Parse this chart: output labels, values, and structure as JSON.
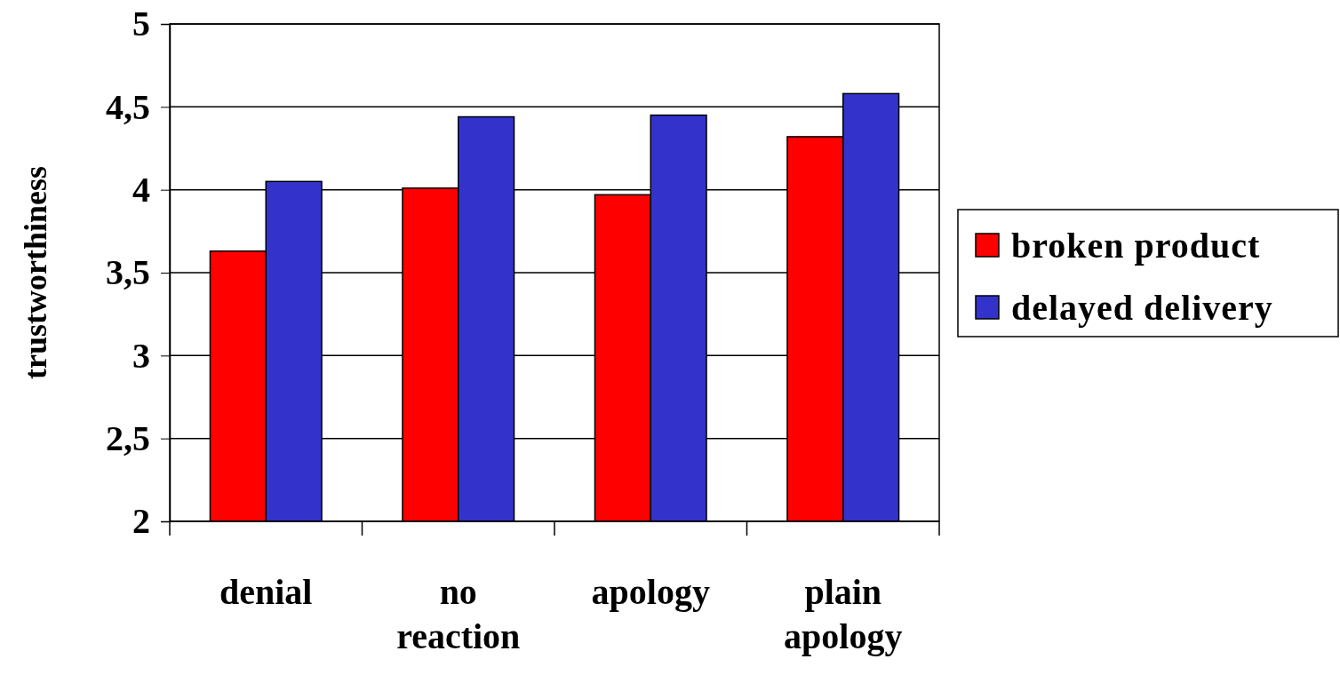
{
  "chart_data": {
    "type": "bar",
    "ylabel": "trustworthiness",
    "categories": [
      "denial",
      "no reaction",
      "apology",
      "plain apology"
    ],
    "series": [
      {
        "name": "broken product",
        "color": "#ff0000",
        "values": [
          3.63,
          4.01,
          3.97,
          4.32
        ]
      },
      {
        "name": "delayed delivery",
        "color": "#3333cc",
        "values": [
          4.05,
          4.44,
          4.45,
          4.58
        ]
      }
    ],
    "ylim": [
      2,
      5
    ],
    "yticks": [
      2,
      {
        "value": 2.5,
        "label": "2,5"
      },
      3,
      {
        "value": 3.5,
        "label": "3,5"
      },
      4,
      {
        "value": 4.5,
        "label": "4,5"
      },
      5
    ],
    "grid": "y",
    "legend": "right"
  }
}
